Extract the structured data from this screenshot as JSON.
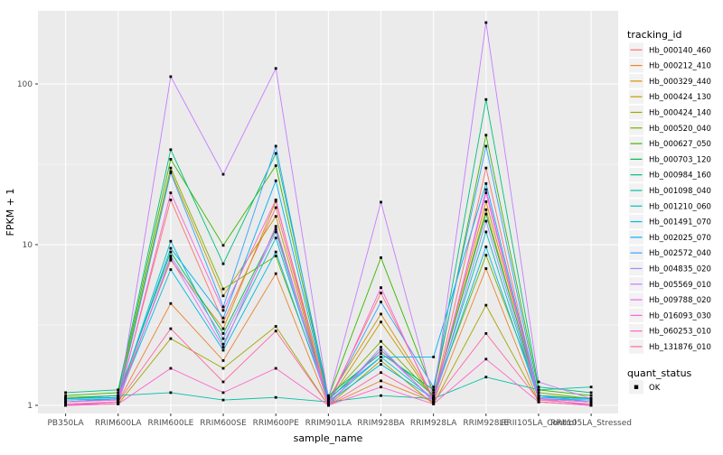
{
  "figure": {
    "xlabel": "sample_name",
    "ylabel": "FPKM + 1",
    "panel_bg": "#EBEBEB",
    "grid_color": "#FFFFFF",
    "axis_text_color": "#4D4D4D",
    "marker_color": "#000000",
    "legend_key_bg": "#F2F2F2"
  },
  "legend": {
    "tracking_title": "tracking_id",
    "quant_title": "quant_status",
    "quant_items": [
      {
        "label": "OK",
        "marker": "black-square"
      }
    ]
  },
  "chart_data": {
    "type": "line",
    "xlabel": "sample_name",
    "ylabel": "FPKM + 1",
    "ylog": true,
    "yticks": [
      1,
      10,
      100
    ],
    "yminor": [
      3.162,
      31.62
    ],
    "ylim": [
      1,
      280
    ],
    "grid": true,
    "legend_position": "right",
    "marker": "small-black-square",
    "categories": [
      "PB350LA",
      "RRIM600LA",
      "RRIM600LE",
      "RRIM600SE",
      "RRIM600PE",
      "RRIM901LA",
      "RRIM928BA",
      "RRIM928LA",
      "RRIM928LE",
      "RRII105LA_Control",
      "RRII105LA_Stressed"
    ],
    "series": [
      {
        "name": "Hb_000140_460",
        "color": "#F8766D",
        "values": [
          1.05,
          1.08,
          19,
          3.3,
          17,
          1.05,
          5.0,
          1.1,
          30,
          1.1,
          1.05
        ]
      },
      {
        "name": "Hb_000212_410",
        "color": "#EA8331",
        "values": [
          1.0,
          1.05,
          4.3,
          1.9,
          6.6,
          1.0,
          1.42,
          1.05,
          7.1,
          1.05,
          1.0
        ]
      },
      {
        "name": "Hb_000329_440",
        "color": "#D89000",
        "values": [
          1.1,
          1.12,
          8.0,
          3.0,
          18.6,
          1.1,
          3.7,
          1.12,
          18.5,
          1.15,
          1.1
        ]
      },
      {
        "name": "Hb_000424_130",
        "color": "#C09B00",
        "values": [
          1.05,
          1.1,
          28.5,
          4.8,
          15,
          1.05,
          3.3,
          1.1,
          16.5,
          1.1,
          1.05
        ]
      },
      {
        "name": "Hb_000424_140",
        "color": "#A3A500",
        "values": [
          1.0,
          1.02,
          2.6,
          1.7,
          3.1,
          1.0,
          1.9,
          1.02,
          4.2,
          1.05,
          1.0
        ]
      },
      {
        "name": "Hb_000520_040",
        "color": "#7CAE00",
        "values": [
          1.12,
          1.15,
          30,
          5.3,
          8.5,
          1.1,
          2.5,
          1.15,
          8.6,
          1.2,
          1.1
        ]
      },
      {
        "name": "Hb_000627_050",
        "color": "#39B600",
        "values": [
          1.15,
          1.2,
          34,
          9.9,
          31,
          1.12,
          8.3,
          1.2,
          48,
          1.25,
          1.15
        ]
      },
      {
        "name": "Hb_000703_120",
        "color": "#00BB4E",
        "values": [
          1.1,
          1.15,
          9.0,
          2.8,
          12.5,
          1.08,
          2.2,
          1.15,
          15.5,
          1.15,
          1.1
        ]
      },
      {
        "name": "Hb_000984_160",
        "color": "#00BF7D",
        "values": [
          1.2,
          1.25,
          39,
          7.6,
          37,
          1.15,
          2.1,
          1.25,
          80,
          1.3,
          1.2
        ]
      },
      {
        "name": "Hb_001098_040",
        "color": "#00C1A3",
        "values": [
          1.1,
          1.15,
          1.2,
          1.08,
          1.12,
          1.05,
          1.15,
          1.1,
          1.5,
          1.25,
          1.3
        ]
      },
      {
        "name": "Hb_001210_060",
        "color": "#00BFC4",
        "values": [
          1.05,
          1.1,
          10.5,
          2.4,
          11,
          1.05,
          2.0,
          1.1,
          12,
          1.1,
          1.05
        ]
      },
      {
        "name": "Hb_001491_070",
        "color": "#00BAE0",
        "values": [
          1.08,
          1.1,
          7.0,
          2.2,
          9.0,
          1.05,
          1.8,
          1.1,
          9.7,
          1.1,
          1.08
        ]
      },
      {
        "name": "Hb_002025_070",
        "color": "#00B0F6",
        "values": [
          1.1,
          1.12,
          9.5,
          3.5,
          25,
          1.1,
          2.0,
          2.0,
          24,
          1.12,
          1.1
        ]
      },
      {
        "name": "Hb_002572_040",
        "color": "#35A2FF",
        "values": [
          1.05,
          1.1,
          28,
          4.1,
          41,
          1.05,
          4.4,
          1.3,
          41,
          1.15,
          1.05
        ]
      },
      {
        "name": "Hb_004835_020",
        "color": "#9590FF",
        "values": [
          1.0,
          1.05,
          8.5,
          2.6,
          12,
          1.0,
          2.3,
          1.05,
          14,
          1.1,
          1.0
        ]
      },
      {
        "name": "Hb_005569_010",
        "color": "#C77CFF",
        "values": [
          1.0,
          1.05,
          111,
          27.4,
          125,
          1.1,
          18.4,
          1.1,
          241,
          1.4,
          1.1
        ]
      },
      {
        "name": "Hb_009788_020",
        "color": "#E76BF3",
        "values": [
          1.05,
          1.08,
          8.2,
          2.3,
          13,
          1.02,
          2.2,
          1.08,
          21,
          1.1,
          1.05
        ]
      },
      {
        "name": "Hb_016093_030",
        "color": "#FA62DB",
        "values": [
          1.0,
          1.05,
          21,
          3.9,
          19,
          1.0,
          5.4,
          1.05,
          22,
          1.1,
          1.0
        ]
      },
      {
        "name": "Hb_060253_010",
        "color": "#FF61C9",
        "values": [
          1.0,
          1.02,
          1.7,
          1.2,
          1.7,
          1.0,
          1.3,
          1.02,
          1.94,
          1.05,
          1.0
        ]
      },
      {
        "name": "Hb_131876_010",
        "color": "#FF67A4",
        "values": [
          1.02,
          1.05,
          3.0,
          1.4,
          2.9,
          1.0,
          1.6,
          1.05,
          2.8,
          1.08,
          1.02
        ]
      }
    ]
  }
}
